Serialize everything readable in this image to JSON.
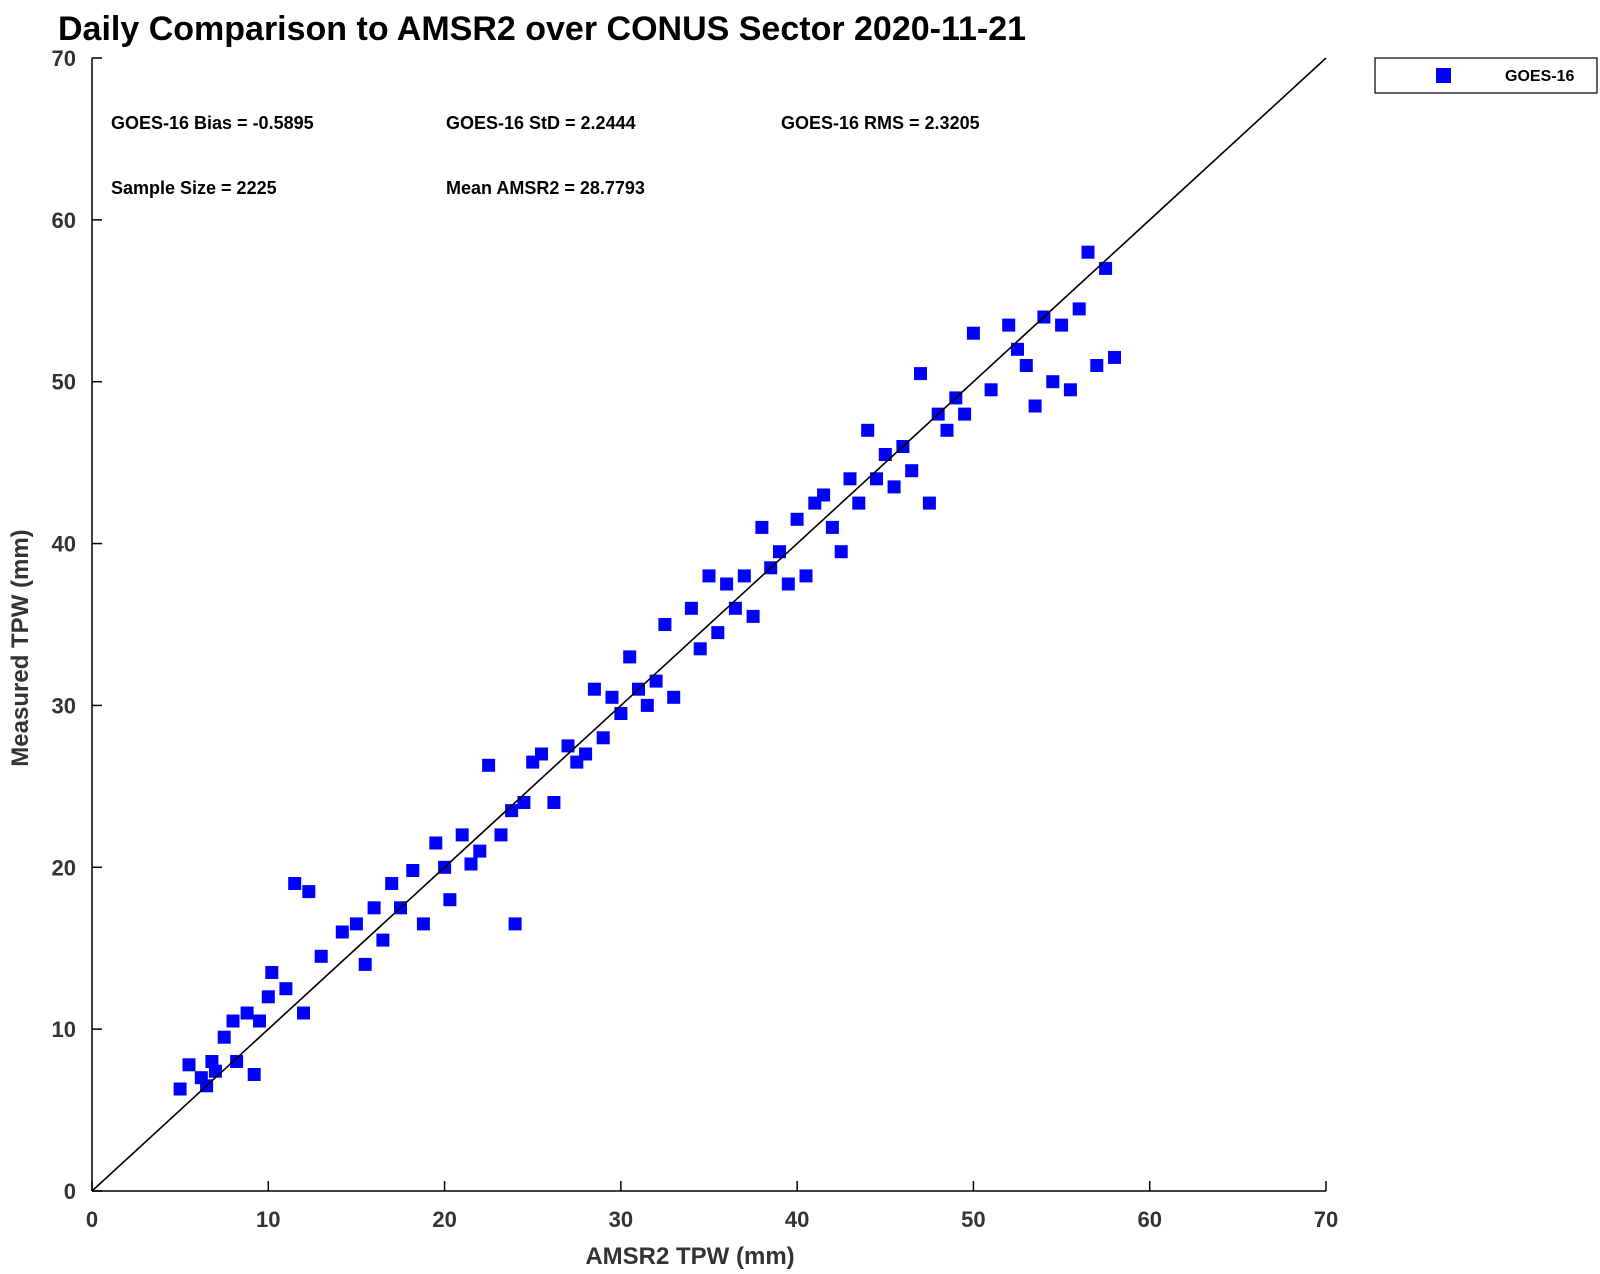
{
  "chart_data": {
    "type": "scatter",
    "title": "Daily Comparison to AMSR2 over CONUS Sector 2020-11-21",
    "xlabel": "AMSR2 TPW (mm)",
    "ylabel": "Measured TPW (mm)",
    "xlim": [
      0,
      70
    ],
    "ylim": [
      0,
      70
    ],
    "xticks": [
      0,
      10,
      20,
      30,
      40,
      50,
      60,
      70
    ],
    "yticks": [
      0,
      10,
      20,
      30,
      40,
      50,
      60,
      70
    ],
    "grid": false,
    "legend": {
      "position": "outside-top-right",
      "entries": [
        "GOES-16"
      ]
    },
    "reference_line": {
      "type": "one-to-one",
      "from": [
        0,
        0
      ],
      "to": [
        70,
        70
      ]
    },
    "annotations": [
      "GOES-16 Bias = -0.5895",
      "GOES-16 StD = 2.2444",
      "GOES-16 RMS = 2.3205",
      "Sample Size = 2225",
      "Mean AMSR2 = 28.7793"
    ],
    "series": [
      {
        "name": "GOES-16",
        "color": "#0000ff",
        "marker": "square",
        "sample_size": 2225,
        "bias": -0.5895,
        "std": 2.2444,
        "mean_x": 28.7793,
        "x": [
          5.0,
          5.5,
          6.2,
          6.5,
          6.8,
          7.0,
          7.5,
          8.0,
          8.2,
          8.8,
          9.2,
          9.5,
          10.0,
          10.2,
          11.0,
          11.5,
          12.0,
          12.3,
          13.0,
          14.2,
          15.0,
          15.5,
          16.0,
          16.5,
          17.0,
          17.5,
          18.2,
          18.8,
          19.5,
          20.0,
          20.3,
          21.0,
          21.5,
          22.0,
          22.5,
          23.2,
          23.8,
          24.0,
          24.5,
          25.0,
          25.5,
          26.2,
          27.0,
          27.5,
          28.0,
          28.5,
          29.0,
          29.5,
          30.0,
          30.5,
          31.0,
          31.5,
          32.0,
          32.5,
          33.0,
          34.0,
          34.5,
          35.0,
          35.5,
          36.0,
          36.5,
          37.0,
          37.5,
          38.0,
          38.5,
          39.0,
          39.5,
          40.0,
          40.5,
          41.0,
          41.5,
          42.0,
          42.5,
          43.0,
          43.5,
          44.0,
          44.5,
          45.0,
          45.5,
          46.0,
          46.5,
          47.0,
          47.5,
          48.0,
          48.5,
          49.0,
          49.5,
          50.0,
          51.0,
          52.0,
          52.5,
          53.0,
          53.5,
          54.0,
          54.5,
          55.0,
          55.5,
          56.0,
          56.5,
          57.0,
          57.5,
          58.0
        ],
        "y": [
          6.3,
          7.8,
          7.0,
          6.5,
          8.0,
          7.4,
          9.5,
          10.5,
          8.0,
          11.0,
          7.2,
          10.5,
          12.0,
          13.5,
          12.5,
          19.0,
          11.0,
          18.5,
          14.5,
          16.0,
          16.5,
          14.0,
          17.5,
          15.5,
          19.0,
          17.5,
          19.8,
          16.5,
          21.5,
          20.0,
          18.0,
          22.0,
          20.2,
          21.0,
          26.3,
          22.0,
          23.5,
          16.5,
          24.0,
          26.5,
          27.0,
          24.0,
          27.5,
          26.5,
          27.0,
          31.0,
          28.0,
          30.5,
          29.5,
          33.0,
          31.0,
          30.0,
          31.5,
          35.0,
          30.5,
          36.0,
          33.5,
          38.0,
          34.5,
          37.5,
          36.0,
          38.0,
          35.5,
          41.0,
          38.5,
          39.5,
          37.5,
          41.5,
          38.0,
          42.5,
          43.0,
          41.0,
          39.5,
          44.0,
          42.5,
          47.0,
          44.0,
          45.5,
          43.5,
          46.0,
          44.5,
          50.5,
          42.5,
          48.0,
          47.0,
          49.0,
          48.0,
          53.0,
          49.5,
          53.5,
          52.0,
          51.0,
          48.5,
          54.0,
          50.0,
          53.5,
          49.5,
          54.5,
          58.0,
          51.0,
          57.0,
          51.5
        ]
      }
    ]
  }
}
